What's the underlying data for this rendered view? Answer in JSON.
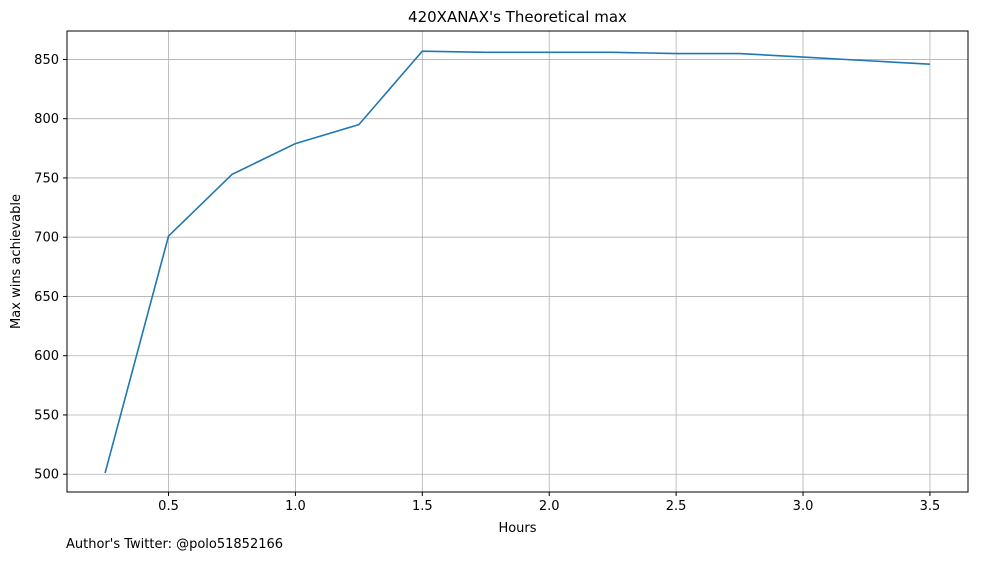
{
  "chart_data": {
    "type": "line",
    "title": "420XANAX's Theoretical max",
    "xlabel": "Hours",
    "ylabel": "Max wins achievable",
    "xlim": [
      0.1,
      3.65
    ],
    "ylim": [
      485,
      874
    ],
    "xticks": [
      "0.5",
      "1.0",
      "1.5",
      "2.0",
      "2.5",
      "3.0",
      "3.5"
    ],
    "yticks": [
      "500",
      "550",
      "600",
      "650",
      "700",
      "750",
      "800",
      "850"
    ],
    "grid": true,
    "legend": "none",
    "series": [
      {
        "color": "#1f77b4",
        "x": [
          0.25,
          0.5,
          0.75,
          1.0,
          1.25,
          1.5,
          1.75,
          2.0,
          2.25,
          2.5,
          2.75,
          3.0,
          3.25,
          3.5
        ],
        "y": [
          501,
          701,
          753,
          779,
          795,
          857,
          856,
          856,
          856,
          855,
          855,
          852,
          849,
          846
        ]
      }
    ]
  },
  "footnote": "Author's Twitter: @polo51852166"
}
